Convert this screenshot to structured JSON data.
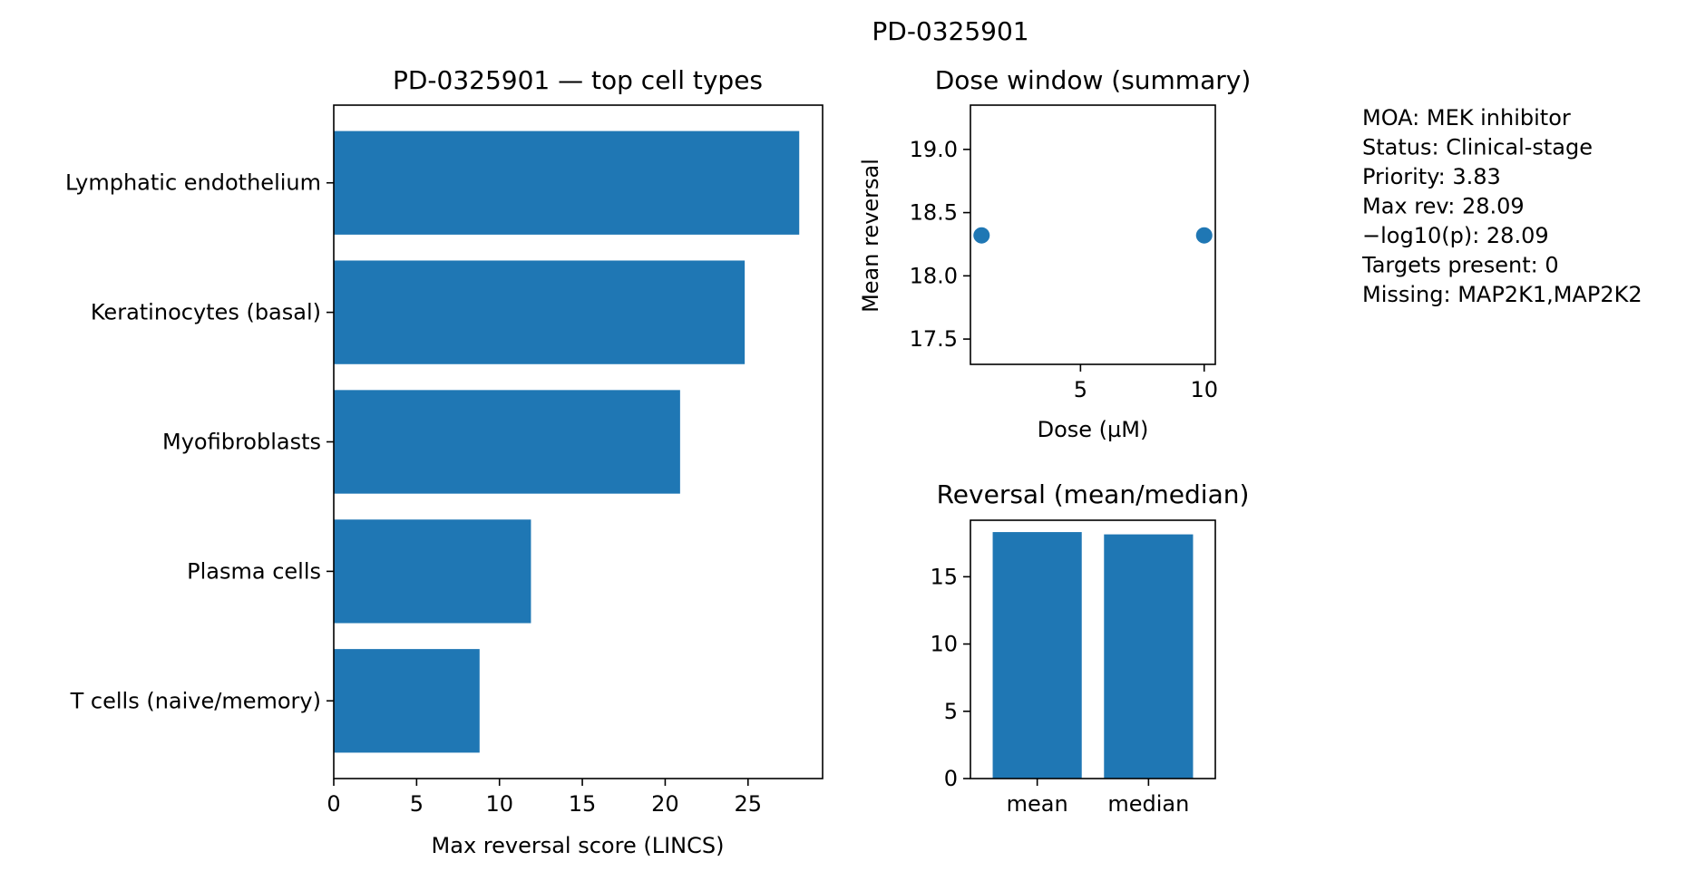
{
  "figure": {
    "suptitle": "PD-0325901"
  },
  "chart_data": [
    {
      "type": "bar",
      "orientation": "horizontal",
      "title": "PD-0325901 — top cell types",
      "xlabel": "Max reversal score (LINCS)",
      "ylabel": "",
      "categories": [
        "Lymphatic endothelium",
        "Keratinocytes (basal)",
        "Myofibroblasts",
        "Plasma cells",
        "T cells (naive/memory)"
      ],
      "values": [
        28.09,
        24.8,
        20.9,
        11.9,
        8.8
      ],
      "xlim": [
        0,
        29.5
      ],
      "xticks": [
        0,
        5,
        10,
        15,
        20,
        25
      ],
      "color": "#1f77b4",
      "grid": false
    },
    {
      "type": "scatter",
      "title": "Dose window (summary)",
      "xlabel": "Dose (µM)",
      "ylabel": "Mean reversal",
      "x": [
        1,
        10
      ],
      "y": [
        18.32,
        18.32
      ],
      "xlim": [
        0.55,
        10.45
      ],
      "ylim": [
        17.3,
        19.35
      ],
      "xticks": [
        5,
        10
      ],
      "yticks": [
        17.5,
        18.0,
        18.5,
        19.0
      ],
      "ytick_labels": [
        "17.5",
        "18.0",
        "18.5",
        "19.0"
      ],
      "color": "#1f77b4",
      "grid": false
    },
    {
      "type": "bar",
      "orientation": "vertical",
      "title": "Reversal (mean/median)",
      "xlabel": "",
      "ylabel": "",
      "categories": [
        "mean",
        "median"
      ],
      "values": [
        18.32,
        18.15
      ],
      "ylim": [
        0,
        19.2
      ],
      "yticks": [
        0,
        5,
        10,
        15
      ],
      "color": "#1f77b4",
      "grid": false
    }
  ],
  "info_panel": {
    "lines": [
      "MOA: MEK inhibitor",
      "Status: Clinical-stage",
      "Priority: 3.83",
      "Max rev: 28.09",
      "−log10(p): 28.09",
      "Targets present: 0",
      "Missing: MAP2K1,MAP2K2"
    ]
  }
}
